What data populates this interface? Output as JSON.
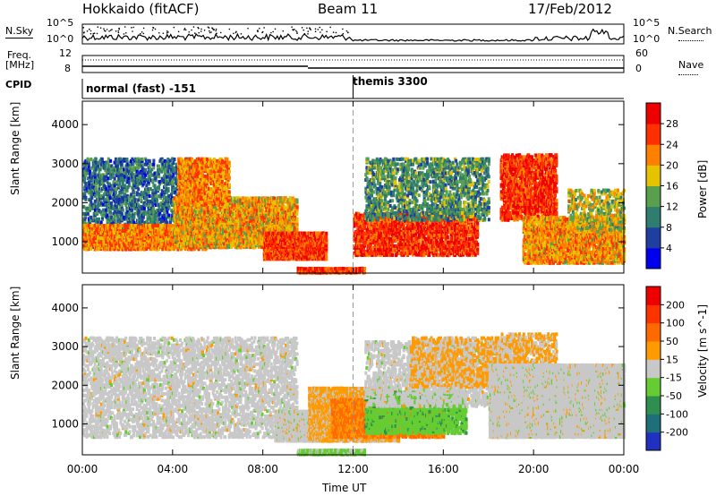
{
  "header": {
    "radar": "Hokkaido (fitACF)",
    "beam": "Beam 11",
    "date": "17/Feb/2012"
  },
  "strip": {
    "nsky_label": "N.Sky",
    "nsearch_label": "N.Search",
    "nsky_ticks": [
      "10^5",
      "10^0"
    ],
    "nsearch_ticks": [
      "10^5",
      "10^0"
    ],
    "freq_label_1": "Freq.",
    "freq_label_2": "[MHz]",
    "freq_ticks": [
      "12",
      "8"
    ],
    "nave_label": "Nave",
    "nave_ticks": [
      "60",
      "0"
    ],
    "cpid_label": "CPID",
    "cpid_1": "normal (fast) -151",
    "cpid_2": "themis 3300"
  },
  "chart_data": [
    {
      "type": "heatmap",
      "title": "",
      "xlabel": "",
      "ylabel": "Slant Range [km]",
      "ylim": [
        200,
        4600
      ],
      "yticks": [
        "1000",
        "2000",
        "3000",
        "4000"
      ],
      "colorbar": {
        "label": "Power [dB]",
        "ticks": [
          "4",
          "8",
          "12",
          "16",
          "20",
          "24",
          "28"
        ],
        "colors": [
          "#0000ee",
          "#1f3fa0",
          "#2e7d6e",
          "#5a9f4e",
          "#e6c300",
          "#ff8000",
          "#ff3000",
          "#ee0000"
        ],
        "range": [
          0,
          32
        ]
      },
      "regions": [
        {
          "t0": 0.0,
          "t1": 5.2,
          "r0": 900,
          "r1": 3200,
          "level": 9,
          "noise": "speckle"
        },
        {
          "t0": 0.0,
          "t1": 5.5,
          "r0": 850,
          "r1": 1500,
          "level": 22,
          "noise": "streaks"
        },
        {
          "t0": 4.0,
          "t1": 9.5,
          "r0": 900,
          "r1": 2200,
          "level": 20,
          "noise": "streaks"
        },
        {
          "t0": 4.2,
          "t1": 6.5,
          "r0": 2000,
          "r1": 3200,
          "level": 22,
          "noise": "arcs"
        },
        {
          "t0": 8.0,
          "t1": 10.8,
          "r0": 600,
          "r1": 1300,
          "level": 26,
          "noise": "dense"
        },
        {
          "t0": 9.5,
          "t1": 12.5,
          "r0": 250,
          "r1": 400,
          "level": 26,
          "noise": "dense"
        },
        {
          "t0": 12.0,
          "t1": 17.5,
          "r0": 700,
          "r1": 1800,
          "level": 27,
          "noise": "arcs"
        },
        {
          "t0": 12.5,
          "t1": 18.0,
          "r0": 1600,
          "r1": 3200,
          "level": 12,
          "noise": "speckle"
        },
        {
          "t0": 18.5,
          "t1": 21.0,
          "r0": 1600,
          "r1": 3300,
          "level": 27,
          "noise": "arcs"
        },
        {
          "t0": 19.5,
          "t1": 24.0,
          "r0": 500,
          "r1": 1700,
          "level": 21,
          "noise": "streaks"
        },
        {
          "t0": 21.5,
          "t1": 24.0,
          "r0": 1300,
          "r1": 2400,
          "level": 17,
          "noise": "speckle"
        }
      ]
    },
    {
      "type": "heatmap",
      "title": "",
      "xlabel": "Time UT",
      "ylabel": "Slant Range [km]",
      "ylim": [
        200,
        4600
      ],
      "yticks": [
        "1000",
        "2000",
        "3000",
        "4000"
      ],
      "xticks": [
        "00:00",
        "04:00",
        "08:00",
        "12:00",
        "16:00",
        "20:00",
        "00:00"
      ],
      "colorbar": {
        "label": "Velocity [m s^-1]",
        "ticks": [
          "200",
          "100",
          "50",
          "15",
          "-15",
          "-50",
          "-100",
          "-200"
        ],
        "colors": [
          "#2030c0",
          "#1f6f7a",
          "#2e8f4e",
          "#66cc33",
          "#c8c8c8",
          "#ff9a00",
          "#ff6a00",
          "#ff3300",
          "#ee0000"
        ],
        "range": [
          -250,
          250
        ]
      },
      "regions": [
        {
          "t0": 0.0,
          "t1": 9.5,
          "r0": 700,
          "r1": 3300,
          "level": 0,
          "noise": "speckle"
        },
        {
          "t0": 8.5,
          "t1": 11.0,
          "r0": 600,
          "r1": 1400,
          "level": 0,
          "noise": "dense"
        },
        {
          "t0": 10.0,
          "t1": 14.0,
          "r0": 600,
          "r1": 2000,
          "level": 40,
          "noise": "dense"
        },
        {
          "t0": 11.0,
          "t1": 16.0,
          "r0": 700,
          "r1": 1700,
          "level": 90,
          "noise": "streaks"
        },
        {
          "t0": 12.5,
          "t1": 17.0,
          "r0": 800,
          "r1": 1900,
          "level": -60,
          "noise": "arcs"
        },
        {
          "t0": 12.5,
          "t1": 19.5,
          "r0": 1500,
          "r1": 3200,
          "level": 0,
          "noise": "speckle"
        },
        {
          "t0": 14.5,
          "t1": 18.5,
          "r0": 2000,
          "r1": 3300,
          "level": 35,
          "noise": "speckle"
        },
        {
          "t0": 18.5,
          "t1": 21.0,
          "r0": 1700,
          "r1": 3400,
          "level": 35,
          "noise": "speckle"
        },
        {
          "t0": 18.0,
          "t1": 24.0,
          "r0": 700,
          "r1": 2600,
          "level": 0,
          "noise": "dense"
        },
        {
          "t0": 9.5,
          "t1": 12.5,
          "r0": 250,
          "r1": 400,
          "level": -40,
          "noise": "dense"
        }
      ]
    }
  ]
}
